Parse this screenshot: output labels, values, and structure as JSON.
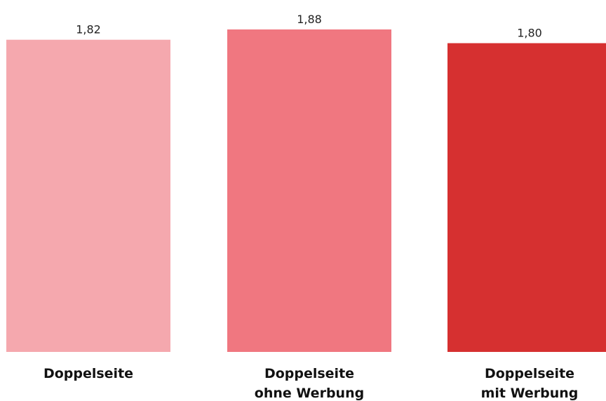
{
  "chart_data": {
    "type": "bar",
    "categories": [
      [
        "Doppelseite"
      ],
      [
        "Doppelseite",
        "ohne Werbung"
      ],
      [
        "Doppelseite",
        "mit Werbung"
      ]
    ],
    "values": [
      1.82,
      1.88,
      1.8
    ],
    "value_labels": [
      "1,82",
      "1,88",
      "1,80"
    ],
    "colors": [
      "#f5a8ae",
      "#f07780",
      "#d63030"
    ],
    "ylim": [
      0,
      1.88
    ],
    "grid": false,
    "legend": "none"
  }
}
